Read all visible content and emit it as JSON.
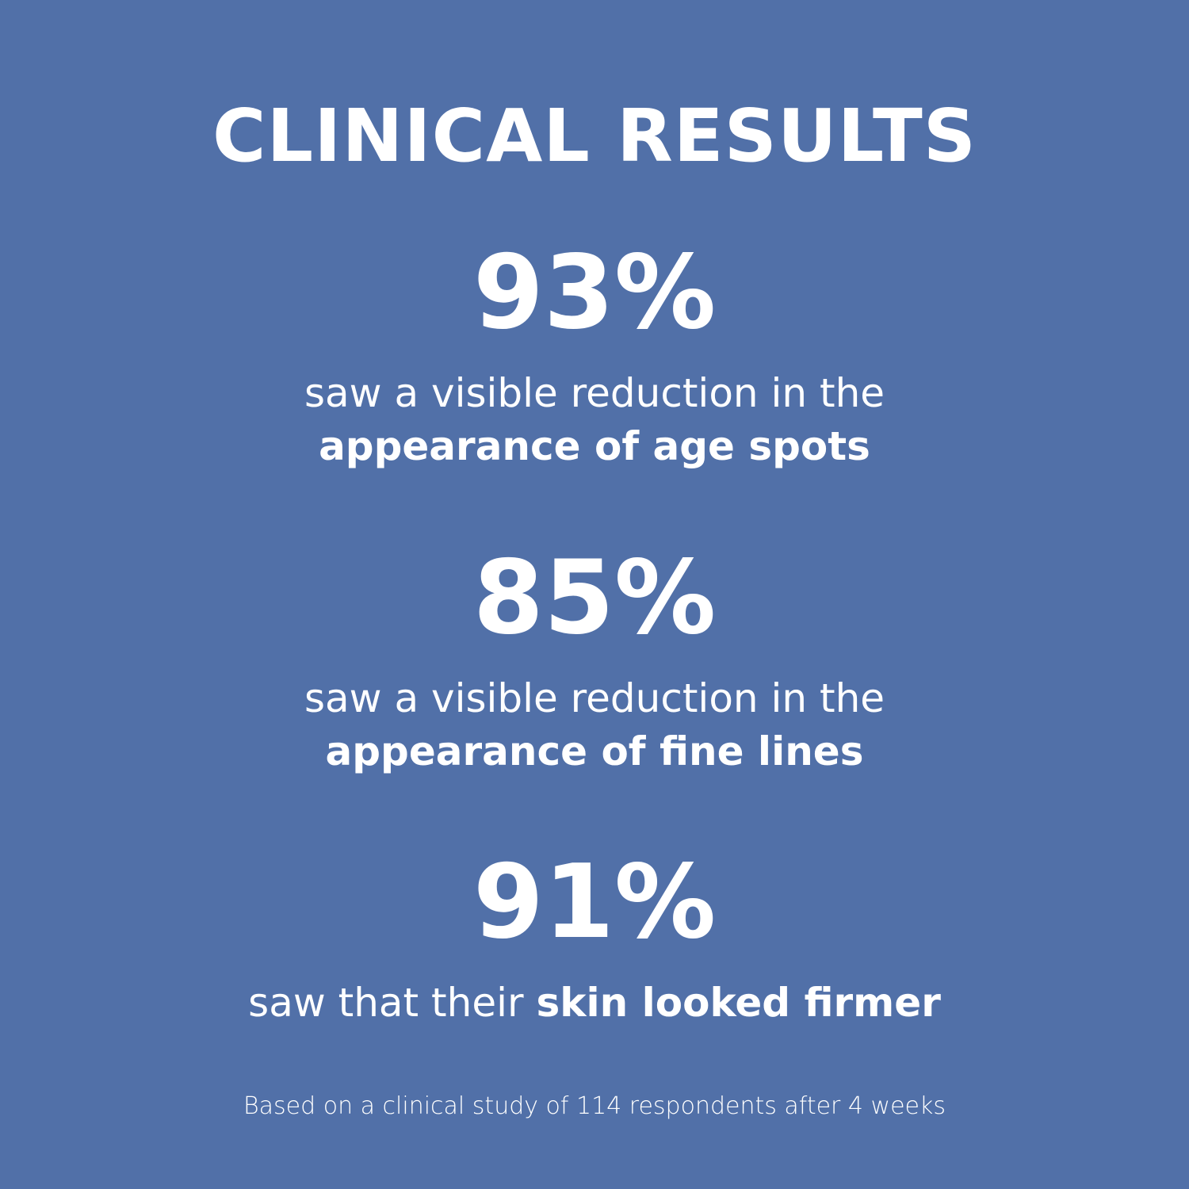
{
  "background_color": "#5170a8",
  "title": "CLINICAL RESULTS",
  "stats": [
    {
      "value": "93%",
      "line1": "saw a visible reduction in the",
      "line2_bold": "appearance of age spots"
    },
    {
      "value": "85%",
      "line1": "saw a visible reduction in the",
      "line2_bold": "appearance of fine lines"
    },
    {
      "value": "91%",
      "line1_regular": "saw that their ",
      "line1_bold": "skin looked firmer"
    }
  ],
  "footnote": "Based on a clinical study of 114 respondents after 4 weeks"
}
